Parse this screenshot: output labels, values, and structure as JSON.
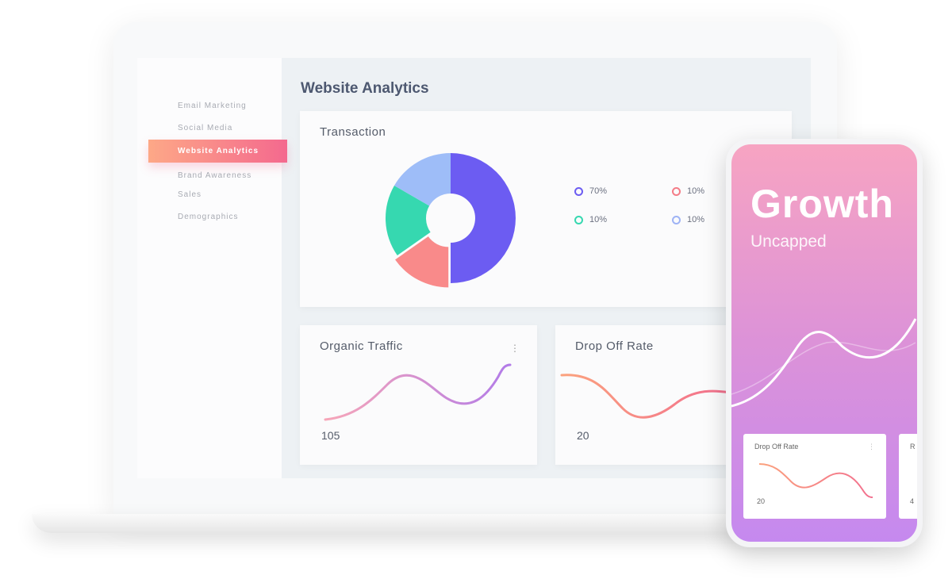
{
  "sidebar": {
    "items": [
      {
        "label": "Email Marketing"
      },
      {
        "label": "Social Media"
      },
      {
        "label": "Website Analytics",
        "active": true
      },
      {
        "label": "Brand Awareness"
      },
      {
        "label": "Sales"
      },
      {
        "label": "Demographics"
      }
    ]
  },
  "main": {
    "title": "Website Analytics",
    "transaction": {
      "title": "Transaction",
      "legend": [
        {
          "label": "70%",
          "color": "#6c5cf2"
        },
        {
          "label": "10%",
          "color": "#f47c87"
        },
        {
          "label": "10%",
          "color": "#36d8b0"
        },
        {
          "label": "10%",
          "color": "#9eb3f5"
        }
      ]
    },
    "organic": {
      "title": "Organic Traffic",
      "value": "105",
      "menu": "⋮"
    },
    "dropoff": {
      "title": "Drop Off Rate",
      "value": "20"
    }
  },
  "phone": {
    "headline": "Growth",
    "subtitle": "Uncapped",
    "card": {
      "title": "Drop Off Rate",
      "value": "20",
      "menu": "⋮"
    },
    "card2": {
      "title": "R",
      "value": "4"
    }
  },
  "colors": {
    "accent_start": "#fda887",
    "accent_end": "#f4698e",
    "donut_purple": "#6c5cf2",
    "donut_teal": "#36d8b0",
    "donut_salmon": "#f98a8a",
    "donut_blue": "#9ebdf8"
  }
}
